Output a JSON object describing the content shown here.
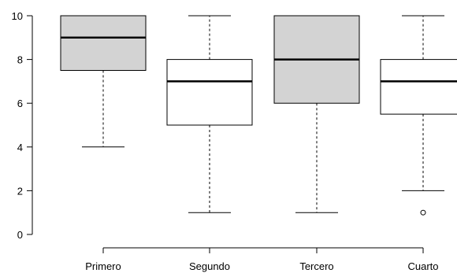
{
  "chart_data": {
    "type": "boxplot",
    "categories": [
      "Primero",
      "Segundo",
      "Tercero",
      "Cuarto"
    ],
    "boxes": [
      {
        "category": "Primero",
        "min": 4,
        "q1": 7.5,
        "median": 9,
        "q3": 10,
        "max": 10,
        "outliers": [],
        "fill": "#d3d3d3"
      },
      {
        "category": "Segundo",
        "min": 1,
        "q1": 5,
        "median": 7,
        "q3": 8,
        "max": 10,
        "outliers": [],
        "fill": "#ffffff"
      },
      {
        "category": "Tercero",
        "min": 1,
        "q1": 6,
        "median": 8,
        "q3": 10,
        "max": 10,
        "outliers": [],
        "fill": "#d3d3d3"
      },
      {
        "category": "Cuarto",
        "min": 2,
        "q1": 5.5,
        "median": 7,
        "q3": 8,
        "max": 10,
        "outliers": [
          1
        ],
        "fill": "#ffffff"
      }
    ],
    "y_ticks": [
      "0",
      "2",
      "4",
      "6",
      "8",
      "10"
    ],
    "ylim": [
      0,
      10
    ],
    "title": "",
    "xlabel": "",
    "ylabel": "",
    "grid": false,
    "legend": "none"
  }
}
